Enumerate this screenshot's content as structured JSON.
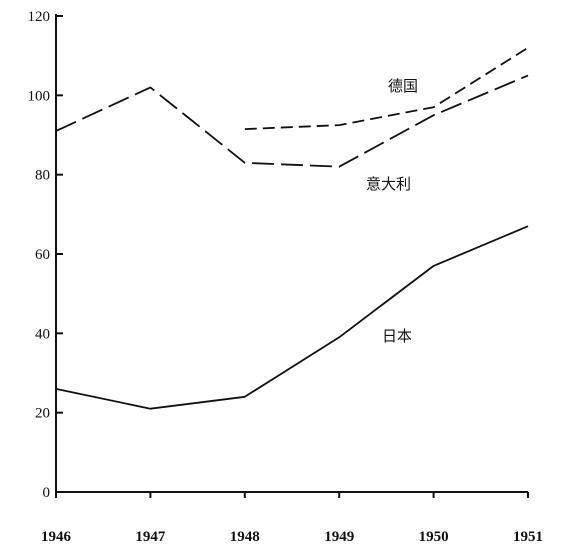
{
  "chart_data": {
    "type": "line",
    "title": "",
    "xlabel": "",
    "ylabel": "",
    "x": [
      1946,
      1947,
      1948,
      1949,
      1950,
      1951
    ],
    "x_tick_labels": [
      "1946",
      "1947",
      "1948",
      "1949",
      "1950",
      "1951"
    ],
    "y_ticks": [
      0,
      20,
      40,
      60,
      80,
      100,
      120
    ],
    "y_tick_labels": [
      "0",
      "20",
      "40",
      "60",
      "80",
      "100",
      "120"
    ],
    "ylim": [
      0,
      120
    ],
    "xlim": [
      1946,
      1951
    ],
    "grid": false,
    "legend": "none",
    "series": [
      {
        "name": "德国",
        "dash": "medium-dash",
        "points": [
          [
            1948,
            91.5
          ],
          [
            1949,
            92.5
          ],
          [
            1950,
            97
          ],
          [
            1951,
            112
          ]
        ]
      },
      {
        "name": "意大利",
        "dash": "long-dash",
        "points": [
          [
            1946,
            91
          ],
          [
            1947,
            102
          ],
          [
            1948,
            83
          ],
          [
            1949,
            82
          ],
          [
            1950,
            95
          ],
          [
            1951,
            105
          ]
        ]
      },
      {
        "name": "日本",
        "dash": "solid",
        "points": [
          [
            1946,
            26
          ],
          [
            1947,
            21
          ],
          [
            1948,
            24
          ],
          [
            1949,
            39
          ],
          [
            1950,
            57
          ],
          [
            1951,
            67
          ]
        ]
      }
    ]
  }
}
